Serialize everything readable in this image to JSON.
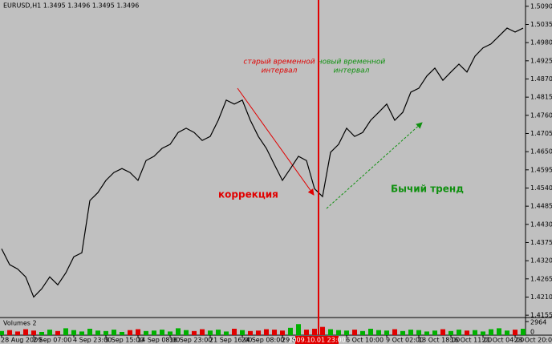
{
  "chart_data": {
    "type": "line",
    "title": "EURUSD,H1  1.3495 1.3496 1.3495 1.3496",
    "color": "#000000",
    "categories": [
      "28 Aug 2009",
      null,
      null,
      null,
      "2 Sep 07:00",
      null,
      null,
      null,
      null,
      "4 Sep 23:00",
      null,
      null,
      null,
      "9 Sep 15:00",
      null,
      null,
      null,
      "14 Sep 08:00",
      null,
      null,
      null,
      "16 Sep 23:00",
      null,
      null,
      null,
      null,
      "21 Sep 16:00",
      null,
      null,
      null,
      "24 Sep 08:00",
      null,
      null,
      null,
      null,
      "29 Sep 00:00",
      null,
      null,
      null,
      null,
      "2009.10.01 23:00",
      null,
      null,
      "6 Oct 10:00",
      null,
      null,
      null,
      null,
      "9 Oct 02:00",
      null,
      null,
      null,
      "13 Oct 18:00",
      null,
      null,
      null,
      "16 Oct 11:00",
      null,
      null,
      null,
      "21 Oct 04:00",
      null,
      null,
      null,
      "23 Oct 20:00",
      null
    ],
    "values": [
      1.4356,
      1.4308,
      1.4295,
      1.4271,
      1.421,
      1.4235,
      1.4271,
      1.4247,
      1.4283,
      1.4332,
      1.4344,
      1.4502,
      1.4526,
      1.4563,
      1.4587,
      1.4599,
      1.4587,
      1.4563,
      1.4623,
      1.4636,
      1.466,
      1.4672,
      1.4708,
      1.4721,
      1.4708,
      1.4684,
      1.4696,
      1.4745,
      1.4806,
      1.4794,
      1.4806,
      1.4745,
      1.4696,
      1.466,
      1.4611,
      1.4563,
      1.4599,
      1.4636,
      1.4623,
      1.4538,
      1.4514,
      1.4648,
      1.4672,
      1.4721,
      1.4696,
      1.4708,
      1.4745,
      1.4769,
      1.4794,
      1.4745,
      1.4769,
      1.483,
      1.4842,
      1.4879,
      1.4903,
      1.4866,
      1.4891,
      1.4915,
      1.4891,
      1.4939,
      1.4964,
      1.4976,
      1.5,
      1.5024,
      1.5012,
      1.5024
    ],
    "ylim": [
      1.4148,
      1.5109
    ],
    "yticks": [
      {
        "value": 1.509,
        "label": "1.5090"
      },
      {
        "value": 1.5035,
        "label": "1.5035"
      },
      {
        "value": 1.498,
        "label": "1.4980"
      },
      {
        "value": 1.4925,
        "label": "1.4925"
      },
      {
        "value": 1.487,
        "label": "1.4870"
      },
      {
        "value": 1.4815,
        "label": "1.4815"
      },
      {
        "value": 1.476,
        "label": "1.4760"
      },
      {
        "value": 1.4705,
        "label": "1.4705"
      },
      {
        "value": 1.465,
        "label": "1.4650"
      },
      {
        "value": 1.4595,
        "label": "1.4595"
      },
      {
        "value": 1.454,
        "label": "1.4540"
      },
      {
        "value": 1.4485,
        "label": "1.4485"
      },
      {
        "value": 1.443,
        "label": "1.4430"
      },
      {
        "value": 1.4375,
        "label": "1.4375"
      },
      {
        "value": 1.432,
        "label": "1.4320"
      },
      {
        "value": 1.4265,
        "label": "1.4265"
      },
      {
        "value": 1.421,
        "label": "1.4210"
      },
      {
        "value": 1.4155,
        "label": "1.4155"
      }
    ],
    "annotations": {
      "old_interval": [
        "старый временной",
        "интервал"
      ],
      "new_interval": [
        "новый временной",
        "интервал"
      ],
      "correction": "коррекция",
      "bull_trend": "Бычий тренд"
    },
    "volumes": {
      "label": "Volumes 2",
      "up_color": "#00b000",
      "down_color": "#e00000",
      "ylim": [
        0,
        2964
      ],
      "yticks": [
        0,
        2964
      ],
      "values": [
        900,
        1100,
        800,
        1300,
        1000,
        700,
        1200,
        900,
        1500,
        1100,
        800,
        1400,
        1000,
        900,
        1200,
        700,
        1100,
        1300,
        900,
        1000,
        1200,
        800,
        1500,
        1100,
        900,
        1300,
        1000,
        1200,
        800,
        1400,
        1100,
        900,
        1000,
        1300,
        1200,
        1000,
        1600,
        2400,
        1200,
        1400,
        1800,
        1300,
        1100,
        1000,
        1200,
        900,
        1400,
        1100,
        1000,
        1300,
        900,
        1200,
        1100,
        800,
        1000,
        1300,
        900,
        1200,
        1000,
        1100,
        800,
        1300,
        1500,
        1000,
        1200,
        1400
      ]
    }
  }
}
